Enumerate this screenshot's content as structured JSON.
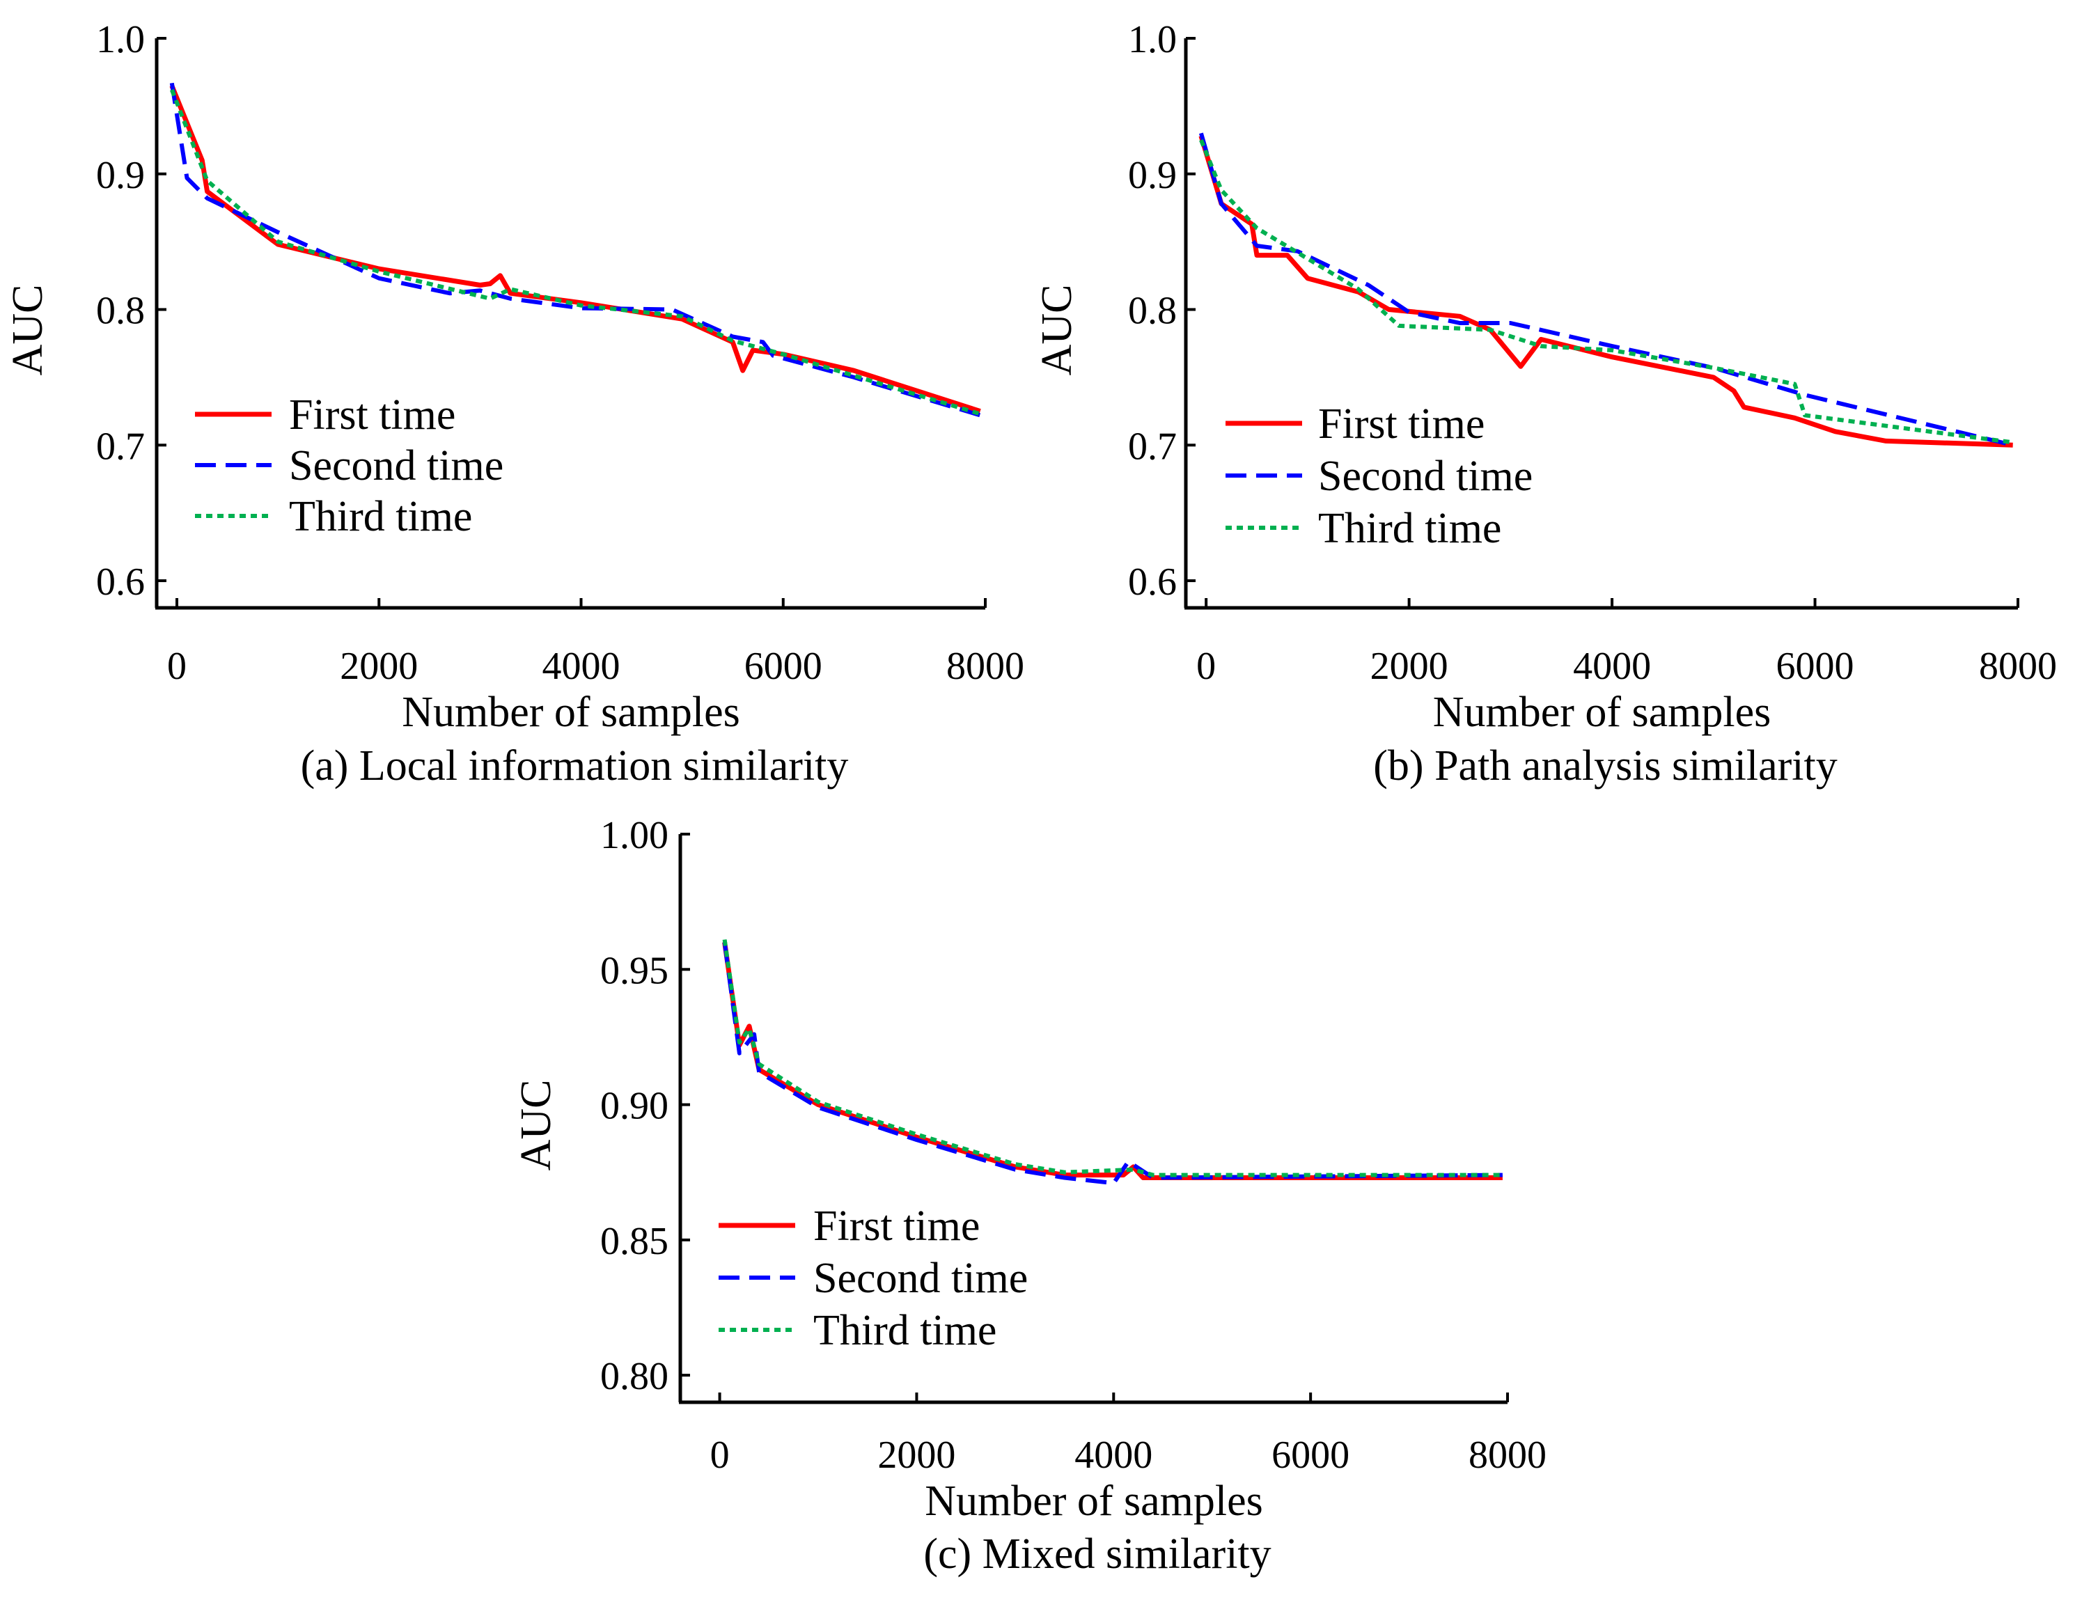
{
  "chart_data": [
    {
      "type": "line",
      "caption": "(a) Local information similarity",
      "xlabel": "Number of samples",
      "ylabel": "AUC",
      "xlim": [
        -200,
        8000
      ],
      "ylim": [
        0.58,
        1.0
      ],
      "xticks": [
        0,
        2000,
        4000,
        6000,
        8000
      ],
      "yticks": [
        0.6,
        0.7,
        0.8,
        0.9,
        1.0
      ],
      "ytick_labels": [
        "0.6",
        "0.7",
        "0.8",
        "0.9",
        "1.0"
      ],
      "grid": false,
      "legend_position": "lower-left",
      "series": [
        {
          "name": "First time",
          "color": "#ff0000",
          "style": "solid",
          "x": [
            -50,
            250,
            300,
            1000,
            2000,
            3000,
            3100,
            3200,
            3300,
            4000,
            5000,
            5500,
            5600,
            5700,
            6000,
            6700,
            7950
          ],
          "y": [
            0.965,
            0.91,
            0.887,
            0.848,
            0.83,
            0.818,
            0.819,
            0.825,
            0.812,
            0.805,
            0.793,
            0.776,
            0.755,
            0.77,
            0.767,
            0.755,
            0.725
          ]
        },
        {
          "name": "Second time",
          "color": "#0000ff",
          "style": "dashed",
          "x": [
            -50,
            100,
            300,
            1000,
            2000,
            2700,
            3000,
            3300,
            4000,
            4900,
            5500,
            5800,
            5900,
            6700,
            7950
          ],
          "y": [
            0.967,
            0.897,
            0.882,
            0.857,
            0.823,
            0.812,
            0.814,
            0.808,
            0.801,
            0.8,
            0.78,
            0.776,
            0.766,
            0.75,
            0.722
          ]
        },
        {
          "name": "Third time",
          "color": "#00b050",
          "style": "dotted",
          "x": [
            -50,
            300,
            1000,
            2000,
            3100,
            3300,
            4000,
            5000,
            5500,
            6000,
            7950
          ],
          "y": [
            0.962,
            0.895,
            0.85,
            0.828,
            0.808,
            0.815,
            0.803,
            0.795,
            0.777,
            0.767,
            0.723
          ]
        }
      ]
    },
    {
      "type": "line",
      "caption": "(b) Path analysis similarity",
      "xlabel": "Number of samples",
      "ylabel": "AUC",
      "xlim": [
        -200,
        8000
      ],
      "ylim": [
        0.58,
        1.0
      ],
      "xticks": [
        0,
        2000,
        4000,
        6000,
        8000
      ],
      "yticks": [
        0.6,
        0.7,
        0.8,
        0.9,
        1.0
      ],
      "ytick_labels": [
        "0.6",
        "0.7",
        "0.8",
        "0.9",
        "1.0"
      ],
      "grid": false,
      "legend_position": "lower-left",
      "series": [
        {
          "name": "First time",
          "color": "#ff0000",
          "style": "solid",
          "x": [
            -50,
            150,
            450,
            500,
            800,
            1000,
            1500,
            1800,
            2500,
            2800,
            3100,
            3300,
            4000,
            5000,
            5200,
            5300,
            5800,
            6200,
            6700,
            7950
          ],
          "y": [
            0.928,
            0.878,
            0.863,
            0.84,
            0.84,
            0.823,
            0.813,
            0.8,
            0.795,
            0.785,
            0.758,
            0.778,
            0.765,
            0.75,
            0.74,
            0.728,
            0.72,
            0.71,
            0.703,
            0.7
          ]
        },
        {
          "name": "Second time",
          "color": "#0000ff",
          "style": "dashed",
          "x": [
            -50,
            150,
            500,
            900,
            1600,
            2000,
            2500,
            3000,
            4000,
            5000,
            5900,
            7950
          ],
          "y": [
            0.93,
            0.878,
            0.847,
            0.843,
            0.818,
            0.798,
            0.79,
            0.79,
            0.773,
            0.757,
            0.737,
            0.7
          ]
        },
        {
          "name": "Third time",
          "color": "#00b050",
          "style": "dotted",
          "x": [
            -50,
            150,
            500,
            1500,
            1900,
            2800,
            3300,
            4000,
            5000,
            5800,
            5900,
            7950
          ],
          "y": [
            0.925,
            0.888,
            0.86,
            0.815,
            0.788,
            0.785,
            0.773,
            0.77,
            0.757,
            0.745,
            0.722,
            0.702
          ]
        }
      ]
    },
    {
      "type": "line",
      "caption": "(c) Mixed similarity",
      "xlabel": "Number of samples",
      "ylabel": "AUC",
      "xlim": [
        -400,
        8000
      ],
      "ylim": [
        0.79,
        1.0
      ],
      "xticks": [
        0,
        2000,
        4000,
        6000,
        8000
      ],
      "yticks": [
        0.8,
        0.85,
        0.9,
        0.95,
        1.0
      ],
      "ytick_labels": [
        "0.80",
        "0.85",
        "0.90",
        "0.95",
        "1.00"
      ],
      "grid": false,
      "legend_position": "lower-left",
      "series": [
        {
          "name": "First time",
          "color": "#ff0000",
          "style": "solid",
          "x": [
            50,
            200,
            300,
            400,
            1000,
            2000,
            3000,
            3500,
            4000,
            4100,
            4200,
            4300,
            7950
          ],
          "y": [
            0.96,
            0.922,
            0.929,
            0.913,
            0.9,
            0.888,
            0.877,
            0.874,
            0.874,
            0.874,
            0.877,
            0.873,
            0.873
          ]
        },
        {
          "name": "Second time",
          "color": "#0000ff",
          "style": "dashed",
          "x": [
            50,
            200,
            350,
            400,
            1000,
            2000,
            3000,
            3500,
            4000,
            4150,
            4400,
            7950
          ],
          "y": [
            0.96,
            0.919,
            0.926,
            0.912,
            0.899,
            0.887,
            0.876,
            0.873,
            0.871,
            0.879,
            0.873,
            0.874
          ]
        },
        {
          "name": "Third time",
          "color": "#00b050",
          "style": "dotted",
          "x": [
            50,
            200,
            300,
            400,
            1000,
            2000,
            3000,
            3500,
            4200,
            4400,
            7950
          ],
          "y": [
            0.961,
            0.923,
            0.928,
            0.915,
            0.901,
            0.889,
            0.878,
            0.875,
            0.876,
            0.874,
            0.874
          ]
        }
      ]
    }
  ]
}
